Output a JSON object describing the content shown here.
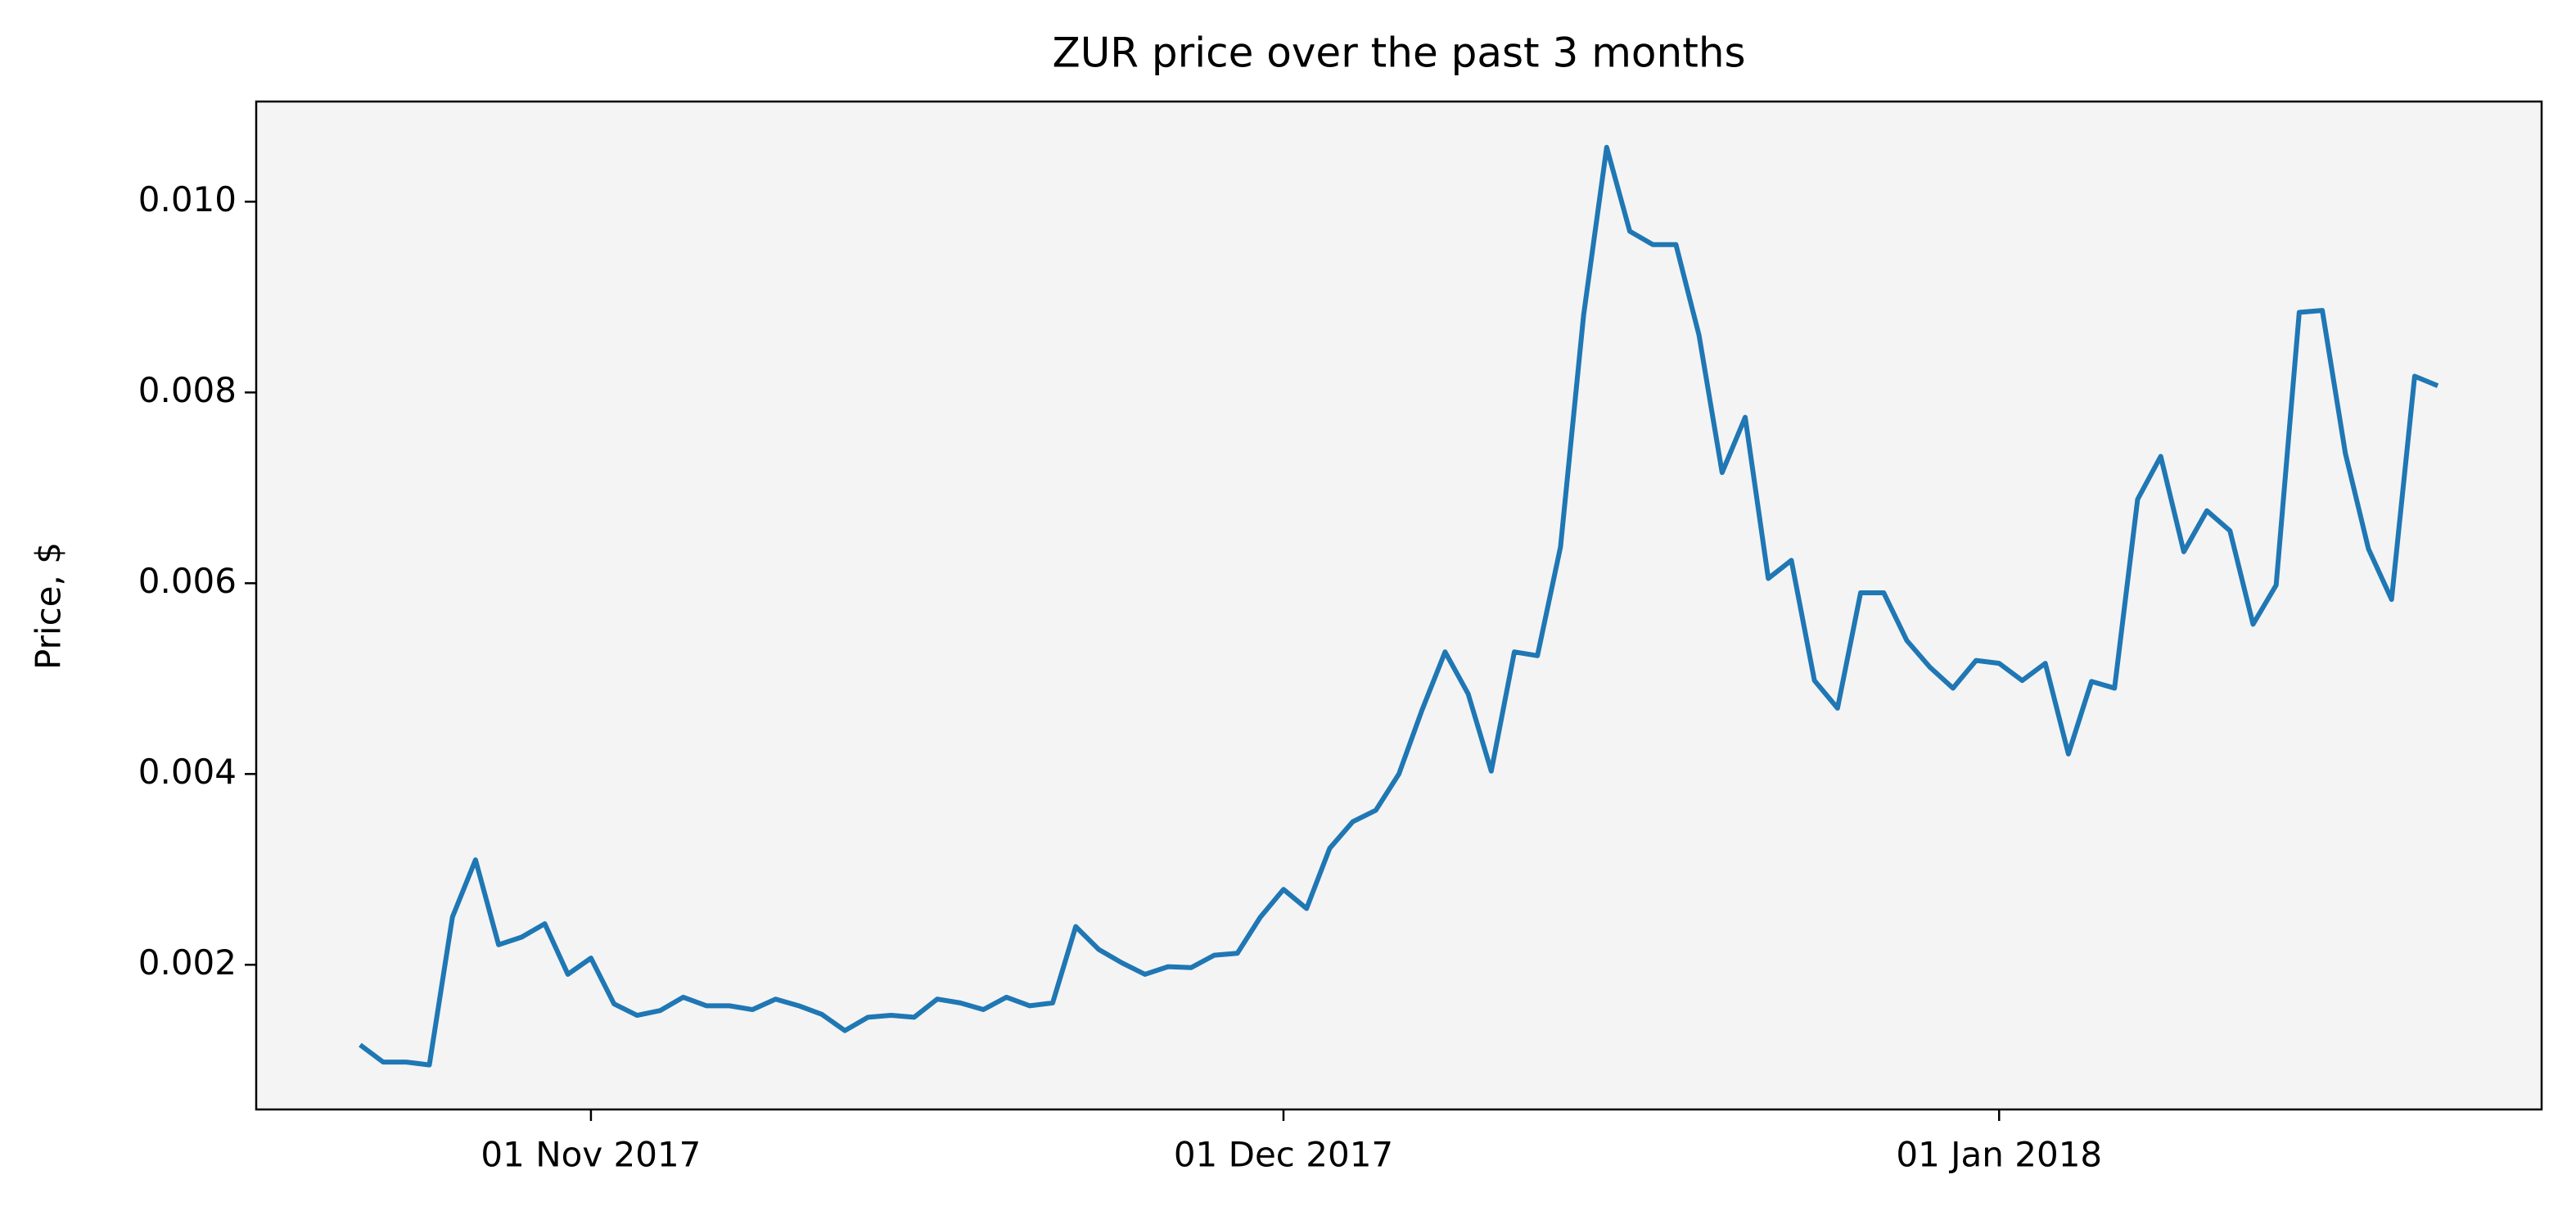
{
  "chart_data": {
    "type": "line",
    "title": "ZUR price over the past 3 months",
    "y_label": "Price, $",
    "x": [
      "2017-10-22",
      "2017-10-23",
      "2017-10-24",
      "2017-10-25",
      "2017-10-26",
      "2017-10-27",
      "2017-10-28",
      "2017-10-29",
      "2017-10-30",
      "2017-10-31",
      "2017-11-01",
      "2017-11-02",
      "2017-11-03",
      "2017-11-04",
      "2017-11-05",
      "2017-11-06",
      "2017-11-07",
      "2017-11-08",
      "2017-11-09",
      "2017-11-10",
      "2017-11-11",
      "2017-11-12",
      "2017-11-13",
      "2017-11-14",
      "2017-11-15",
      "2017-11-16",
      "2017-11-17",
      "2017-11-18",
      "2017-11-19",
      "2017-11-20",
      "2017-11-21",
      "2017-11-22",
      "2017-11-23",
      "2017-11-24",
      "2017-11-25",
      "2017-11-26",
      "2017-11-27",
      "2017-11-28",
      "2017-11-29",
      "2017-11-30",
      "2017-12-01",
      "2017-12-02",
      "2017-12-03",
      "2017-12-04",
      "2017-12-05",
      "2017-12-06",
      "2017-12-07",
      "2017-12-08",
      "2017-12-09",
      "2017-12-10",
      "2017-12-11",
      "2017-12-12",
      "2017-12-13",
      "2017-12-14",
      "2017-12-15",
      "2017-12-16",
      "2017-12-17",
      "2017-12-18",
      "2017-12-19",
      "2017-12-20",
      "2017-12-21",
      "2017-12-22",
      "2017-12-23",
      "2017-12-24",
      "2017-12-25",
      "2017-12-26",
      "2017-12-27",
      "2017-12-28",
      "2017-12-29",
      "2017-12-30",
      "2017-12-31",
      "2018-01-01",
      "2018-01-02",
      "2018-01-03",
      "2018-01-04",
      "2018-01-05",
      "2018-01-06",
      "2018-01-07",
      "2018-01-08",
      "2018-01-09",
      "2018-01-10",
      "2018-01-11",
      "2018-01-12",
      "2018-01-13",
      "2018-01-14",
      "2018-01-15",
      "2018-01-16",
      "2018-01-17",
      "2018-01-18",
      "2018-01-19",
      "2018-01-20"
    ],
    "series": [
      {
        "name": "ZUR",
        "color": "#1f77b4",
        "values": [
          0.00116,
          0.00098,
          0.00098,
          0.00095,
          0.0025,
          0.0031,
          0.00221,
          0.00229,
          0.00243,
          0.0019,
          0.00207,
          0.00159,
          0.00147,
          0.00152,
          0.00166,
          0.00157,
          0.00157,
          0.00153,
          0.00164,
          0.00157,
          0.00148,
          0.00131,
          0.00145,
          0.00147,
          0.00145,
          0.00164,
          0.0016,
          0.00153,
          0.00166,
          0.00157,
          0.0016,
          0.0024,
          0.00216,
          0.00202,
          0.0019,
          0.00198,
          0.00197,
          0.0021,
          0.00212,
          0.0025,
          0.00279,
          0.00259,
          0.00322,
          0.0035,
          0.00362,
          0.004,
          0.00467,
          0.00528,
          0.00484,
          0.00403,
          0.00528,
          0.00524,
          0.00638,
          0.00881,
          0.01057,
          0.00969,
          0.00955,
          0.00955,
          0.0086,
          0.00716,
          0.00774,
          0.00605,
          0.00624,
          0.00498,
          0.00469,
          0.0059,
          0.0059,
          0.0054,
          0.00512,
          0.0049,
          0.00519,
          0.00516,
          0.00498,
          0.00516,
          0.00421,
          0.00497,
          0.0049,
          0.00688,
          0.00733,
          0.00633,
          0.00676,
          0.00655,
          0.00557,
          0.00598,
          0.00884,
          0.00886,
          0.00736,
          0.00636,
          0.00583,
          0.00817,
          0.00807
        ]
      }
    ],
    "xlim": [
      "2017-10-17T12:00:00Z",
      "2018-01-24T12:00:00Z"
    ],
    "xticks": [
      {
        "value": "2017-11-01",
        "label": "01 Nov 2017"
      },
      {
        "value": "2017-12-01",
        "label": "01 Dec 2017"
      },
      {
        "value": "2018-01-01",
        "label": "01 Jan 2018"
      }
    ],
    "ylim": [
      0.000483,
      0.01105
    ],
    "yticks": [
      0.002,
      0.004,
      0.006,
      0.008,
      {
        "value": 0.01,
        "label": "0.010"
      }
    ],
    "grid": false,
    "plot_background": "#f4f4f4"
  }
}
